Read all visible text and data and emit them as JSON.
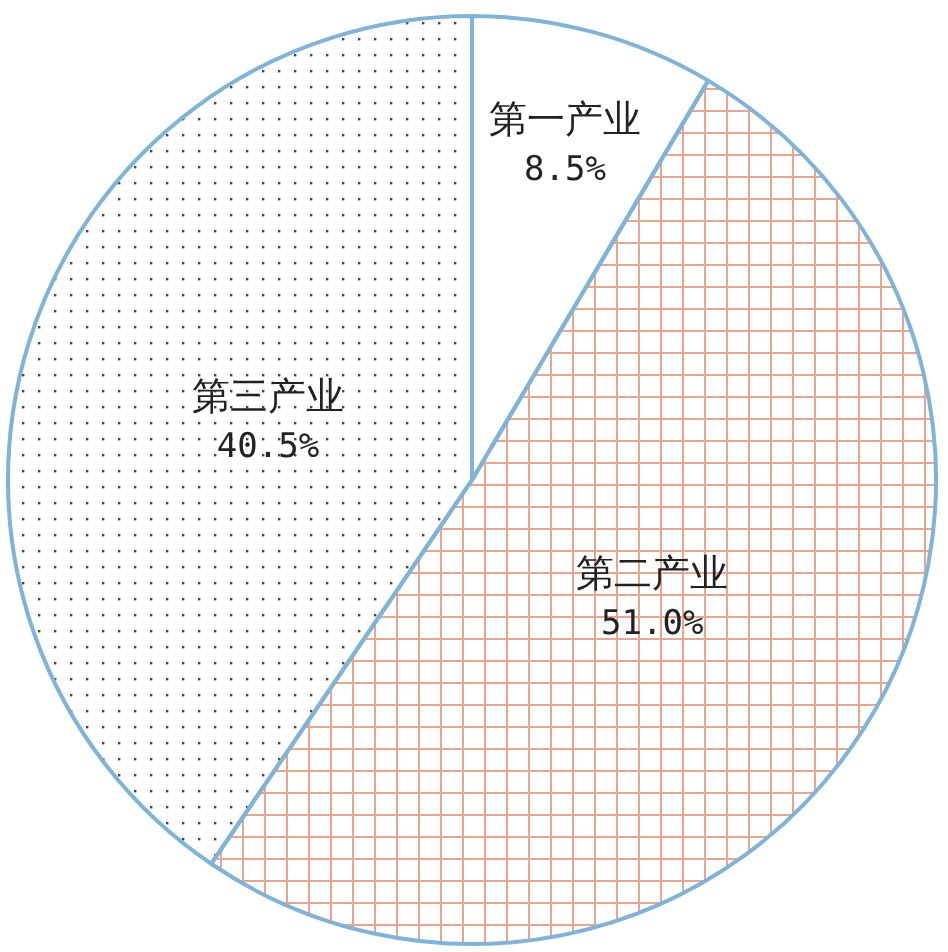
{
  "chart_data": {
    "type": "pie",
    "categories": [
      "第一产业",
      "第二产业",
      "第三产业"
    ],
    "values": [
      8.5,
      51.0,
      40.5
    ],
    "value_labels": [
      "8.5%",
      "51.0%",
      "40.5%"
    ],
    "colors": [
      "#ffffff",
      "#e9a58f",
      "#444444"
    ]
  }
}
